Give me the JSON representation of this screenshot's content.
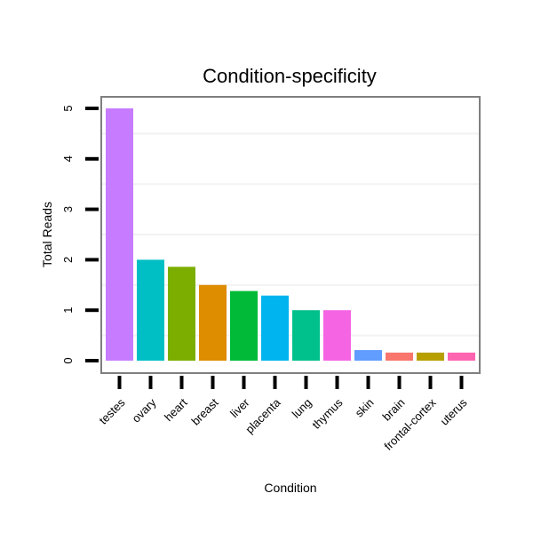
{
  "chart_data": {
    "type": "bar",
    "title": "Condition-specificity",
    "xlabel": "Condition",
    "ylabel": "Total Reads",
    "ylim": [
      0,
      5.25
    ],
    "yticks": [
      0,
      1,
      2,
      3,
      4,
      5
    ],
    "categories": [
      "testes",
      "ovary",
      "heart",
      "breast",
      "liver",
      "placenta",
      "lung",
      "thymus",
      "skin",
      "brain",
      "frontal-cortex",
      "uterus"
    ],
    "values": [
      5.0,
      2.0,
      1.86,
      1.5,
      1.38,
      1.29,
      1.0,
      1.0,
      0.21,
      0.16,
      0.16,
      0.16
    ],
    "colors": [
      "#C77CFF",
      "#00BFC4",
      "#7CAE00",
      "#DE8C00",
      "#00BA38",
      "#00B4F0",
      "#00C08B",
      "#F564E3",
      "#619CFF",
      "#F8766D",
      "#B79F00",
      "#FF64B0"
    ],
    "legend": "none",
    "grid": true
  }
}
